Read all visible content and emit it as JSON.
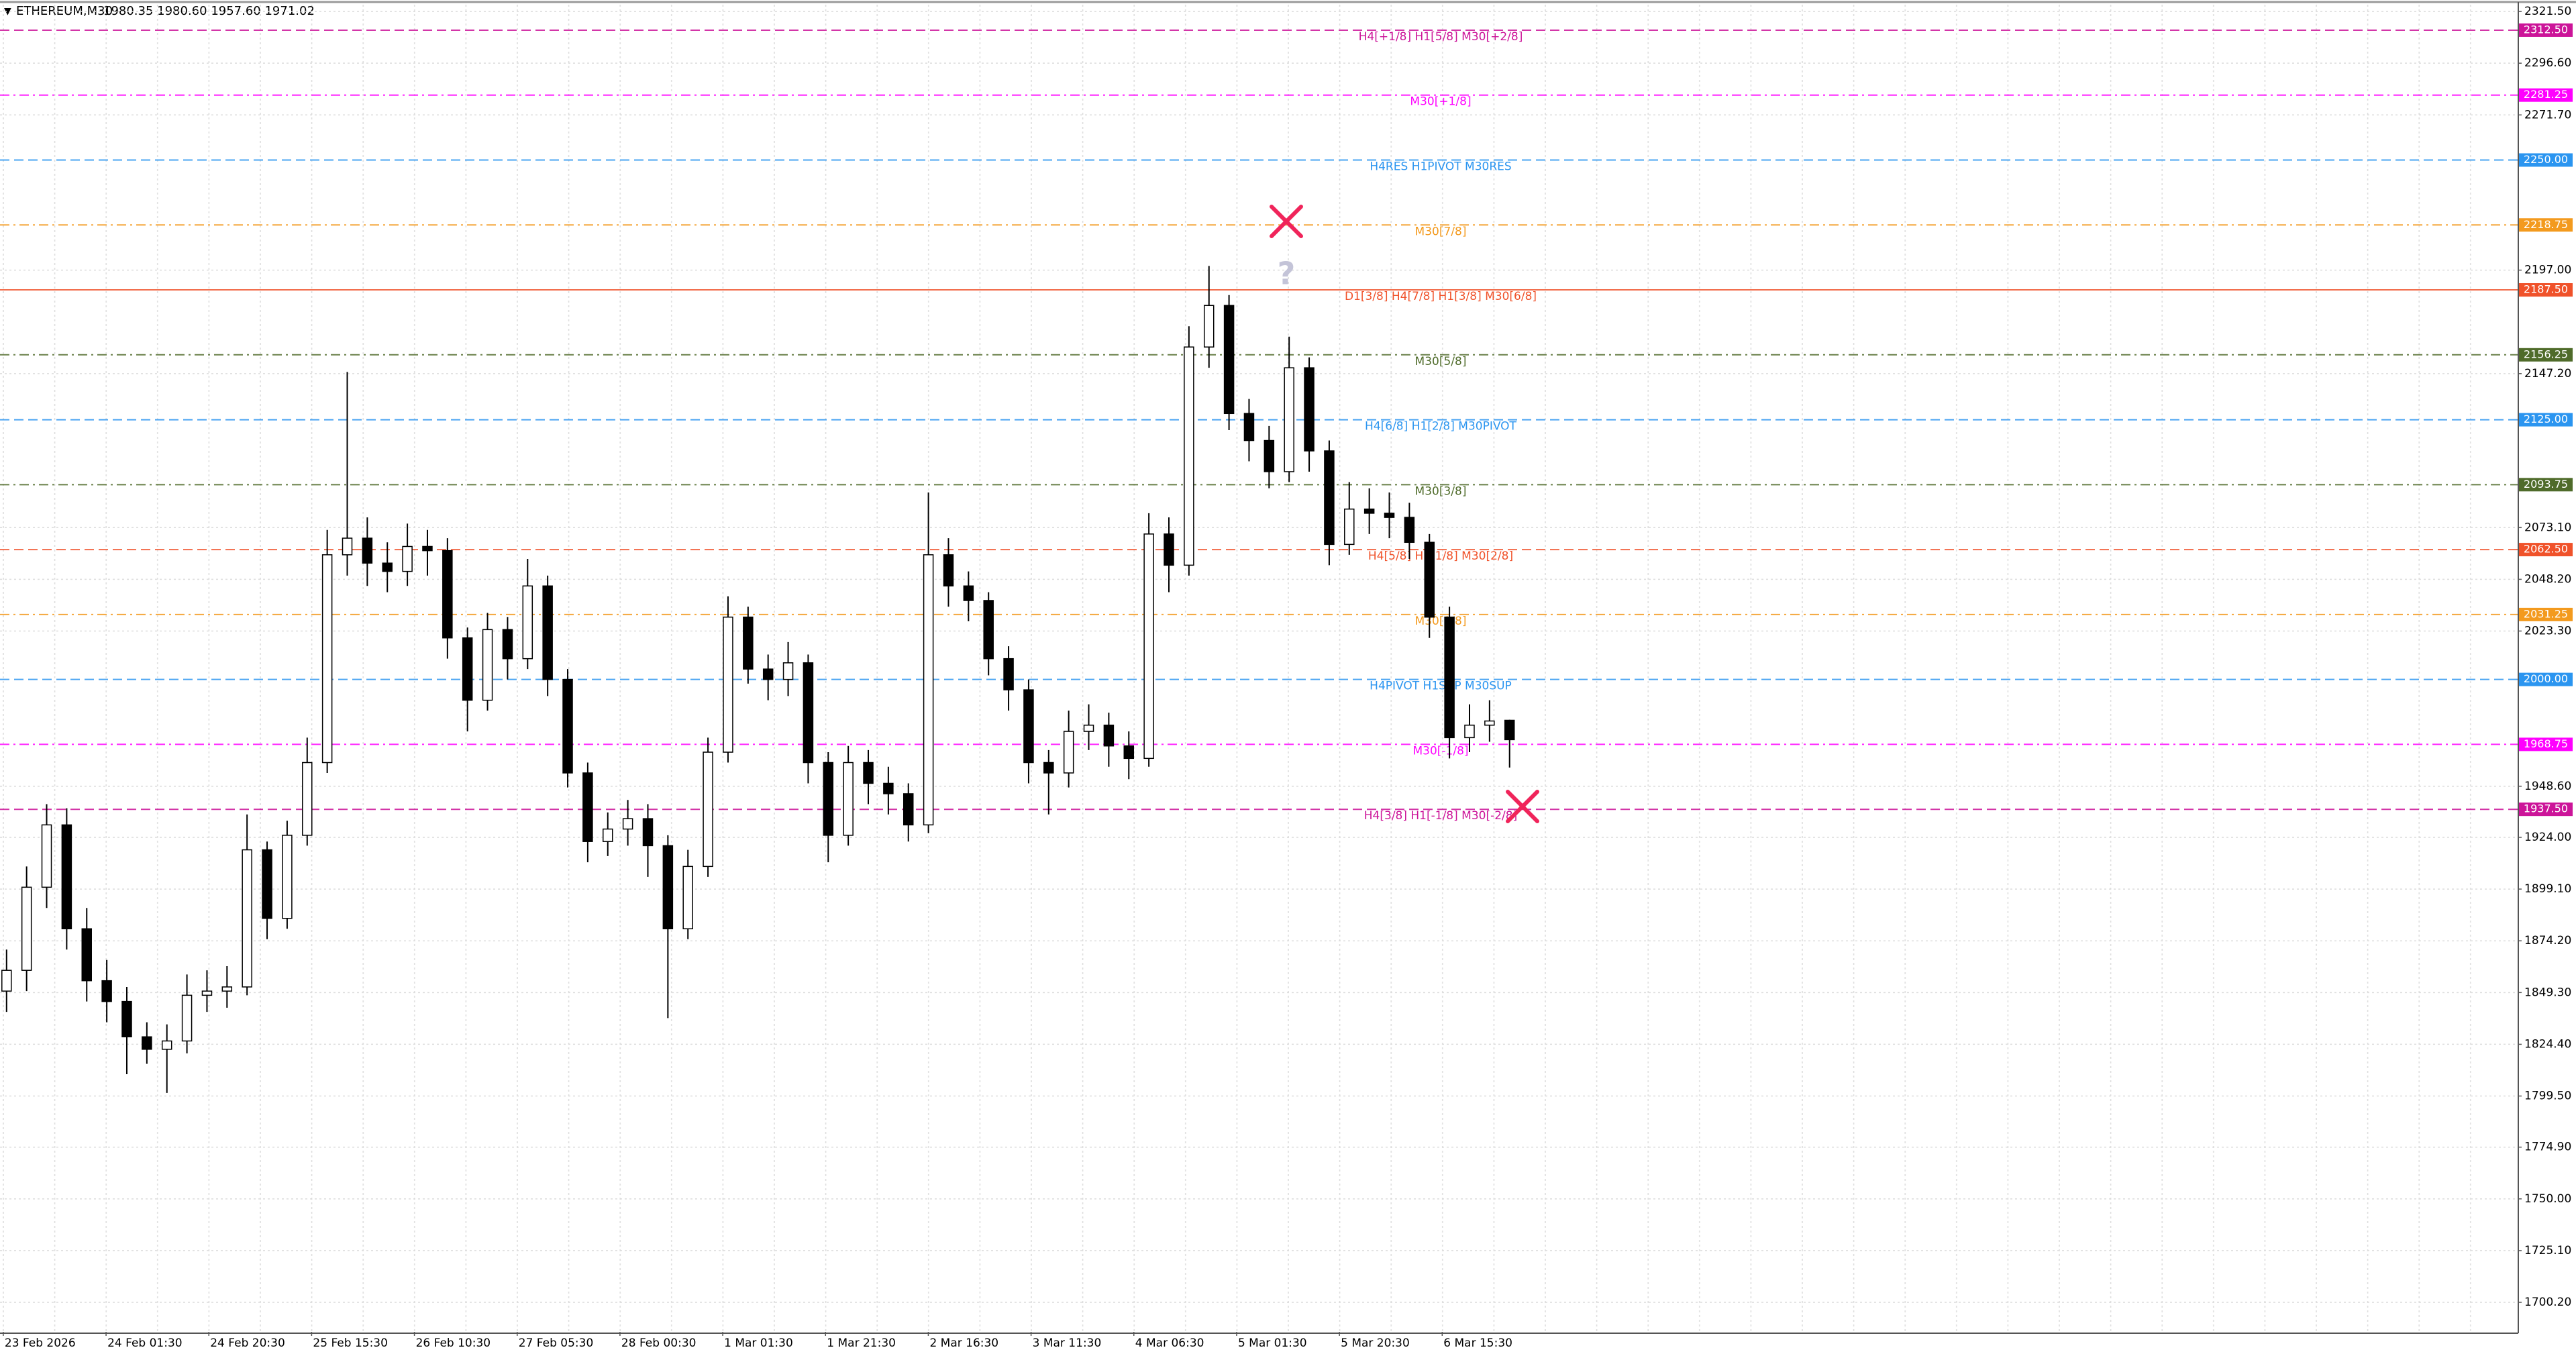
{
  "chart_data": {
    "type": "candlestick",
    "title": "ETHEREUM,M30",
    "ohlc_text": "1980.35 1980.60 1957.60 1971.02",
    "annotation": "?",
    "x_labels": [
      "23 Feb 2026",
      "24 Feb 01:30",
      "24 Feb 20:30",
      "25 Feb 15:30",
      "26 Feb 10:30",
      "27 Feb 05:30",
      "28 Feb 00:30",
      "1 Mar 01:30",
      "1 Mar 21:30",
      "2 Mar 16:30",
      "3 Mar 11:30",
      "4 Mar 06:30",
      "5 Mar 01:30",
      "5 Mar 20:30",
      "6 Mar 15:30"
    ],
    "open": [
      1850,
      1860,
      1900,
      1930,
      1880,
      1855,
      1845,
      1828,
      1822,
      1826,
      1848,
      1850,
      1852,
      1918,
      1885,
      1925,
      1960,
      2060,
      2068,
      2056,
      2052,
      2064,
      2062,
      2020,
      1990,
      2024,
      2010,
      2045,
      2000,
      1955,
      1922,
      1928,
      1933,
      1920,
      1880,
      1910,
      1965,
      2030,
      2005,
      2000,
      2008,
      1960,
      1925,
      1960,
      1950,
      1945,
      1930,
      2060,
      2045,
      2038,
      2010,
      1995,
      1960,
      1955,
      1975,
      1978,
      1968,
      1962,
      2070,
      2055,
      2160,
      2180,
      2128,
      2115,
      2100,
      2150,
      2110,
      2065,
      2082,
      2080,
      2078,
      2066,
      2030,
      1972,
      1978,
      1980.35
    ],
    "high": [
      1870,
      1910,
      1940,
      1938,
      1890,
      1865,
      1852,
      1835,
      1834,
      1858,
      1860,
      1862,
      1935,
      1922,
      1932,
      1972,
      2072,
      2148,
      2078,
      2066,
      2075,
      2072,
      2068,
      2025,
      2032,
      2030,
      2058,
      2050,
      2005,
      1960,
      1936,
      1942,
      1940,
      1925,
      1918,
      1972,
      2040,
      2035,
      2012,
      2018,
      2012,
      1965,
      1968,
      1966,
      1958,
      1950,
      2090,
      2068,
      2052,
      2042,
      2016,
      2000,
      1966,
      1985,
      1988,
      1984,
      1975,
      2080,
      2078,
      2170,
      2199,
      2185,
      2135,
      2122,
      2165,
      2155,
      2115,
      2095,
      2092,
      2090,
      2085,
      2070,
      2035,
      1988,
      1990,
      1980.6
    ],
    "low": [
      1840,
      1850,
      1890,
      1870,
      1845,
      1835,
      1810,
      1815,
      1801,
      1820,
      1840,
      1842,
      1848,
      1875,
      1880,
      1920,
      1955,
      2050,
      2045,
      2042,
      2045,
      2050,
      2010,
      1975,
      1985,
      2000,
      2005,
      1992,
      1948,
      1912,
      1915,
      1920,
      1905,
      1837,
      1875,
      1905,
      1960,
      1998,
      1990,
      1992,
      1950,
      1912,
      1920,
      1940,
      1935,
      1922,
      1926,
      2035,
      2028,
      2002,
      1985,
      1950,
      1935,
      1948,
      1966,
      1958,
      1952,
      1958,
      2042,
      2050,
      2150,
      2120,
      2105,
      2092,
      2095,
      2100,
      2055,
      2060,
      2070,
      2068,
      2058,
      2020,
      1962,
      1965,
      1970,
      1957.6
    ],
    "close": [
      1860,
      1900,
      1930,
      1880,
      1855,
      1845,
      1828,
      1822,
      1826,
      1848,
      1850,
      1852,
      1918,
      1885,
      1925,
      1960,
      2060,
      2068,
      2056,
      2052,
      2064,
      2062,
      2020,
      1990,
      2024,
      2010,
      2045,
      2000,
      1955,
      1922,
      1928,
      1933,
      1920,
      1880,
      1910,
      1965,
      2030,
      2005,
      2000,
      2008,
      1960,
      1925,
      1960,
      1950,
      1945,
      1930,
      2060,
      2045,
      2038,
      2010,
      1995,
      1960,
      1955,
      1975,
      1978,
      1968,
      1962,
      2070,
      2055,
      2160,
      2180,
      2128,
      2115,
      2100,
      2150,
      2110,
      2065,
      2082,
      2080,
      2078,
      2066,
      2030,
      1972,
      1978,
      1980,
      1971.02
    ],
    "up_color": "#ffffff",
    "down_color": "#000000",
    "wick_color": "#000000",
    "ylim": [
      1686,
      2325.4
    ],
    "yticks": [
      {
        "value": 2321.5,
        "label": "2321.50"
      },
      {
        "value": 2296.6,
        "label": "2296.60"
      },
      {
        "value": 2271.7,
        "label": "2271.70"
      },
      {
        "value": 2197.0,
        "label": "2197.00"
      },
      {
        "value": 2147.2,
        "label": "2147.20"
      },
      {
        "value": 2073.1,
        "label": "2073.10"
      },
      {
        "value": 2048.2,
        "label": "2048.20"
      },
      {
        "value": 2023.3,
        "label": "2023.30"
      },
      {
        "value": 1948.6,
        "label": "1948.60"
      },
      {
        "value": 1924.0,
        "label": "1924.00"
      },
      {
        "value": 1899.1,
        "label": "1899.10"
      },
      {
        "value": 1874.2,
        "label": "1874.20"
      },
      {
        "value": 1849.3,
        "label": "1849.30"
      },
      {
        "value": 1824.4,
        "label": "1824.40"
      },
      {
        "value": 1799.5,
        "label": "1799.50"
      },
      {
        "value": 1774.9,
        "label": "1774.90"
      },
      {
        "value": 1750.0,
        "label": "1750.00"
      },
      {
        "value": 1725.1,
        "label": "1725.10"
      },
      {
        "value": 1700.2,
        "label": "1700.20"
      }
    ],
    "grid": true,
    "levels": [
      {
        "value": 2312.5,
        "label": "2312.50",
        "text": "H4[+1/8] H1[5/8] M30[+2/8]",
        "color": "#cc1499",
        "style": "dash"
      },
      {
        "value": 2281.25,
        "label": "2281.25",
        "text": "M30[+1/8]",
        "color": "#ff00ff",
        "style": "dashdot"
      },
      {
        "value": 2250.0,
        "label": "2250.00",
        "text": "H4RES H1PIVOT M30RES",
        "color": "#2b95f0",
        "style": "dash"
      },
      {
        "value": 2218.75,
        "label": "2218.75",
        "text": "M30[7/8]",
        "color": "#f39a1e",
        "style": "dashdot"
      },
      {
        "value": 2187.5,
        "label": "2187.50",
        "text": "D1[3/8] H4[7/8] H1[3/8] M30[6/8]",
        "color": "#f0522a",
        "style": "solid"
      },
      {
        "value": 2156.25,
        "label": "2156.25",
        "text": "M30[5/8]",
        "color": "#4f6b2a",
        "style": "dashdot"
      },
      {
        "value": 2125.0,
        "label": "2125.00",
        "text": "H4[6/8] H1[2/8] M30PIVOT",
        "color": "#2b95f0",
        "style": "dash"
      },
      {
        "value": 2093.75,
        "label": "2093.75",
        "text": "M30[3/8]",
        "color": "#4f6b2a",
        "style": "dashdot"
      },
      {
        "value": 2062.5,
        "label": "2062.50",
        "text": "H4[5/8] H1[1/8] M30[2/8]",
        "color": "#f0522a",
        "style": "dash"
      },
      {
        "value": 2031.25,
        "label": "2031.25",
        "text": "M30[1/8]",
        "color": "#f39a1e",
        "style": "dashdot"
      },
      {
        "value": 2000.0,
        "label": "2000.00",
        "text": "H4PIVOT H1SUP M30SUP",
        "color": "#2b95f0",
        "style": "dash"
      },
      {
        "value": 1968.75,
        "label": "1968.75",
        "text": "M30[-1/8]",
        "color": "#ff00ff",
        "style": "dashdot"
      },
      {
        "value": 1937.5,
        "label": "1937.50",
        "text": "H4[3/8] H1[-1/8] M30[-2/8]",
        "color": "#cc1499",
        "style": "dash"
      }
    ]
  }
}
